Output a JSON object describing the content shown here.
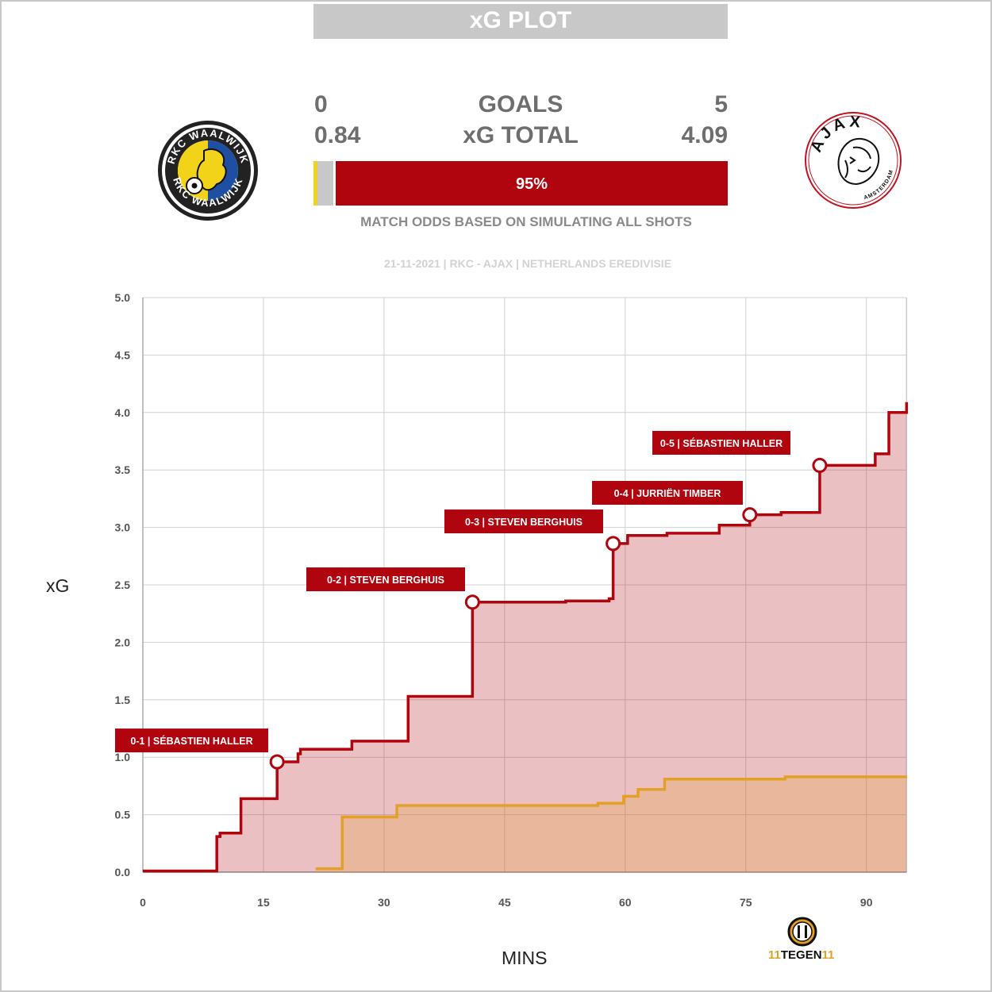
{
  "header": {
    "title": "xG PLOT"
  },
  "teams": {
    "home": {
      "name": "RKC WAALWIJK",
      "goals": "0",
      "xg": "0.84",
      "color": "#e3a026"
    },
    "away": {
      "name": "AJAX",
      "goals": "5",
      "xg": "4.09",
      "color": "#b0050f"
    }
  },
  "labels": {
    "goals": "GOALS",
    "xg_total": "xG TOTAL"
  },
  "odds": {
    "home_win_pct": 1,
    "draw_pct": 4,
    "away_win_pct": 95,
    "away_label": "95%",
    "caption": "MATCH ODDS BASED ON SIMULATING ALL SHOTS"
  },
  "match_info": "21-11-2021 | RKC - AJAX | NETHERLANDS EREDIVISIE",
  "brand": {
    "text_left": "11",
    "text_mid": "TEGEN",
    "text_right": "11"
  },
  "chart_data": {
    "type": "line",
    "xlabel": "MINS",
    "ylabel": "xG",
    "xlim": [
      0,
      95
    ],
    "ylim": [
      0,
      5
    ],
    "xticks": [
      "0",
      "15",
      "30",
      "45",
      "60",
      "75",
      "90"
    ],
    "yticks": [
      "0.0",
      "0.5",
      "1.0",
      "1.5",
      "2.0",
      "2.5",
      "3.0",
      "3.5",
      "4.0",
      "4.5",
      "5.0"
    ],
    "grid": true,
    "series": [
      {
        "team": "away",
        "color": "#b0050f",
        "x": [
          0,
          9.2,
          9.6,
          12.2,
          16.7,
          19.3,
          19.6,
          26,
          33,
          41,
          52.6,
          58,
          58.5,
          60.3,
          65.2,
          71.7,
          75.5,
          79.4,
          84.2,
          91.1,
          92.8,
          95
        ],
        "y": [
          0.01,
          0.31,
          0.34,
          0.64,
          0.96,
          1.03,
          1.07,
          1.14,
          1.53,
          2.35,
          2.36,
          2.38,
          2.86,
          2.93,
          2.95,
          3.02,
          3.11,
          3.13,
          3.54,
          3.64,
          4.0,
          4.09
        ]
      },
      {
        "team": "home",
        "color": "#e3a026",
        "x": [
          21.5,
          24.8,
          31.6,
          56.6,
          59.8,
          61.6,
          64.9,
          79.9,
          94.9
        ],
        "y": [
          0.03,
          0.48,
          0.58,
          0.6,
          0.66,
          0.72,
          0.81,
          0.83,
          0.84
        ]
      }
    ],
    "annotations": [
      {
        "x": 16.7,
        "y": 0.96,
        "text": "0-1 | SÉBASTIEN HALLER"
      },
      {
        "x": 41,
        "y": 2.35,
        "text": "0-2 | STEVEN BERGHUIS"
      },
      {
        "x": 58.5,
        "y": 2.86,
        "text": "0-3 | STEVEN BERGHUIS"
      },
      {
        "x": 75.5,
        "y": 3.11,
        "text": "0-4 | JURRIËN TIMBER"
      },
      {
        "x": 84.2,
        "y": 3.54,
        "text": "0-5 | SÉBASTIEN HALLER"
      }
    ]
  }
}
